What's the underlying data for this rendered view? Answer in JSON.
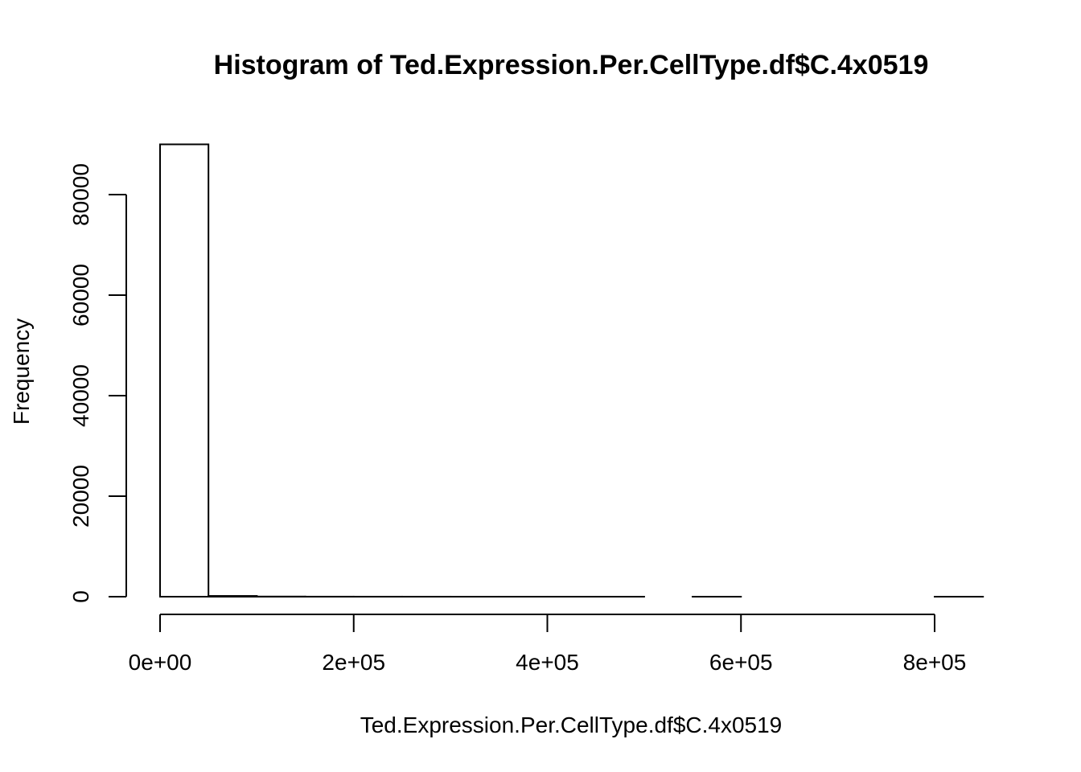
{
  "chart_data": {
    "type": "bar",
    "title": "Histogram of Ted.Expression.Per.CellType.df$C.4x0519",
    "xlabel": "Ted.Expression.Per.CellType.df$C.4x0519",
    "ylabel": "Frequency",
    "bin_width": 50000,
    "bin_starts": [
      0,
      50000,
      100000,
      150000,
      200000,
      250000,
      300000,
      350000,
      400000,
      450000,
      500000,
      550000,
      600000,
      650000,
      700000,
      750000,
      800000
    ],
    "values": [
      90000,
      150,
      30,
      10,
      5,
      3,
      2,
      1,
      1,
      1,
      0,
      1,
      0,
      0,
      0,
      0,
      1
    ],
    "xlim": [
      0,
      850000
    ],
    "ylim": [
      0,
      90000
    ],
    "x_ticks": [
      0,
      200000,
      400000,
      600000,
      800000
    ],
    "x_tick_labels": [
      "0e+00",
      "2e+05",
      "4e+05",
      "6e+05",
      "8e+05"
    ],
    "y_ticks": [
      0,
      20000,
      40000,
      60000,
      80000
    ],
    "y_tick_labels": [
      "0",
      "20000",
      "40000",
      "60000",
      "80000"
    ],
    "grid": false,
    "legend": "none"
  }
}
